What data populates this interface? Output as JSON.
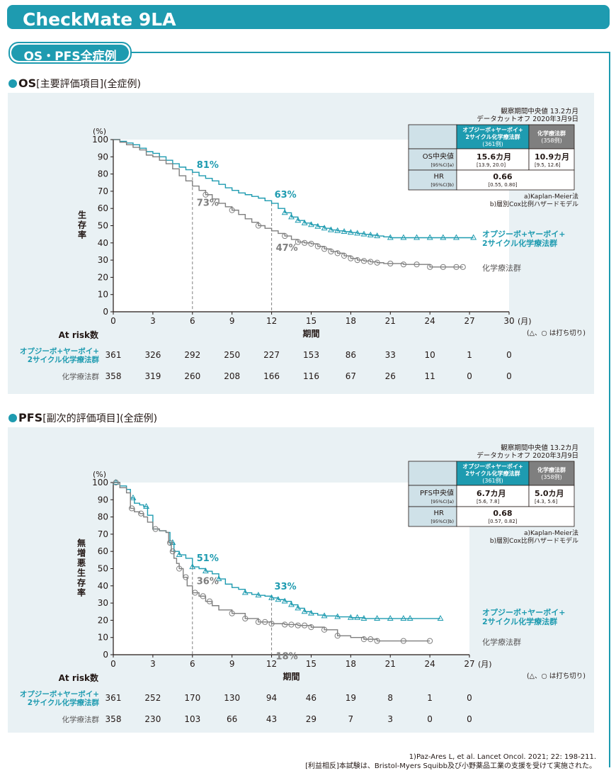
{
  "header": {
    "title": "CheckMate 9LA"
  },
  "section": {
    "label": "OS・PFS全症例"
  },
  "footer": {
    "reference": "1)Paz-Ares L, et al. Lancet Oncol. 2021; 22: 198-211.",
    "coi": "[利益相反]本試験は、Bristol-Myers Squibb及び小野薬品工業の支援を受けて実施された。"
  },
  "chart_data": [
    {
      "type": "line",
      "heading_main": "OS",
      "heading_sub": "[主要評価項目](全症例)",
      "ylabel": "生存率",
      "y_unit": "(%)",
      "xlabel": "期間",
      "x_unit": "(月)",
      "xlim": [
        0,
        30
      ],
      "ylim": [
        0,
        100
      ],
      "xticks": [
        0,
        3,
        6,
        9,
        12,
        15,
        18,
        21,
        24,
        27,
        30
      ],
      "yticks": [
        0,
        10,
        20,
        30,
        40,
        50,
        60,
        70,
        80,
        90,
        100
      ],
      "observation": "観察期間中央値 13.2カ月",
      "cutoff": "データカットオフ 2020年3月9日",
      "censor_note": "(△、○ は打ち切り)",
      "table": {
        "col_a_header": "オプジーボ+ヤーボイ+2サイクル化学療法群 (361例)",
        "col_b_header": "化学療法群 (358例)",
        "row1_label": "OS中央値",
        "row1_sub": "[95%CI]a)",
        "row1_a": "15.6カ月",
        "row1_a_ci": "[13.9, 20.0]",
        "row1_b": "10.9カ月",
        "row1_b_ci": "[9.5, 12.6]",
        "row2_label": "HR",
        "row2_sub": "[95%CI]b)",
        "row2_value": "0.66",
        "row2_ci": "[0.55, 0.80]",
        "note_a": "a)Kaplan-Meier法",
        "note_b": "b)層別Cox比例ハザードモデル"
      },
      "annotations": {
        "combo_6": "81%",
        "chemo_6": "73%",
        "combo_12": "63%",
        "chemo_12": "47%"
      },
      "series": [
        {
          "name": "オプジーボ+ヤーボイ+2サイクル化学療法群",
          "color": "#1e9bb0",
          "marker": "triangle",
          "x": [
            0,
            0.5,
            1,
            1.5,
            2,
            2.5,
            3,
            3.5,
            4,
            4.5,
            5,
            5.5,
            6,
            6.5,
            7,
            7.5,
            8,
            8.5,
            9,
            9.5,
            10,
            10.5,
            11,
            11.5,
            12,
            12.5,
            13,
            13.5,
            14,
            14.5,
            15,
            15.5,
            16,
            16.5,
            17,
            17.5,
            18,
            18.5,
            19,
            19.5,
            20,
            20.5,
            21,
            22,
            23,
            24,
            25,
            26,
            27.3
          ],
          "y": [
            100,
            99,
            98,
            97,
            95,
            93,
            92,
            90,
            88,
            86,
            84,
            82.5,
            81,
            79,
            77.5,
            76,
            74,
            72,
            70.5,
            69,
            68,
            67,
            66,
            64.5,
            63,
            60,
            57.5,
            55,
            53,
            51.5,
            50.5,
            49.5,
            48.5,
            47.5,
            47,
            46.5,
            46,
            45.5,
            45,
            44.5,
            44,
            43.5,
            43,
            43,
            43,
            43,
            43,
            43,
            43
          ],
          "censor_x": [
            13,
            13.5,
            14,
            14.5,
            15,
            15.5,
            16,
            16.5,
            17,
            17.5,
            18,
            18.5,
            19,
            19.5,
            20,
            21,
            22,
            23,
            24,
            25,
            26,
            27.3
          ]
        },
        {
          "name": "化学療法群",
          "color": "#7f7f7f",
          "marker": "circle",
          "x": [
            0,
            0.5,
            1,
            1.5,
            2,
            2.5,
            3,
            3.5,
            4,
            4.5,
            5,
            5.5,
            6,
            6.5,
            7,
            7.5,
            8,
            8.5,
            9,
            9.5,
            10,
            10.5,
            11,
            11.5,
            12,
            12.5,
            13,
            13.5,
            14,
            14.5,
            15,
            15.5,
            16,
            16.5,
            17,
            17.5,
            18,
            18.5,
            19,
            19.5,
            20,
            20.5,
            21,
            22,
            23,
            24,
            25,
            26,
            26.5
          ],
          "y": [
            100,
            98.5,
            97,
            95.5,
            94,
            91,
            90,
            88,
            86,
            83,
            79,
            76,
            73,
            70.5,
            68,
            65.5,
            63,
            61,
            59,
            56.5,
            54,
            52,
            50,
            48.5,
            47,
            45.5,
            44,
            42,
            40.5,
            40,
            39.5,
            38,
            36.5,
            35,
            34,
            32.5,
            31,
            30,
            29.5,
            29,
            28.5,
            28,
            28,
            27.5,
            27.5,
            26,
            26,
            26,
            26
          ],
          "censor_x": [
            7,
            9,
            11,
            13,
            14,
            14.5,
            15,
            15.5,
            16,
            16.5,
            17,
            17.5,
            18,
            18.5,
            19,
            19.5,
            20,
            21,
            22,
            23,
            24,
            25,
            26,
            26.5
          ]
        }
      ],
      "legend": {
        "combo_line1": "オプジーボ+ヤーボイ+",
        "combo_line2": "2サイクル化学療法群",
        "chemo": "化学療法群"
      },
      "risk_table": {
        "title": "At risk数",
        "combo_label_1": "オプジーボ+ヤーボイ+",
        "combo_label_2": "2サイクル化学療法群",
        "chemo_label": "化学療法群",
        "combo": [
          "361",
          "326",
          "292",
          "250",
          "227",
          "153",
          "86",
          "33",
          "10",
          "1",
          "0"
        ],
        "chemo": [
          "358",
          "319",
          "260",
          "208",
          "166",
          "116",
          "67",
          "26",
          "11",
          "0",
          "0"
        ]
      }
    },
    {
      "type": "line",
      "heading_main": "PFS",
      "heading_sub": "[副次的評価項目](全症例)",
      "ylabel": "無増悪生存率",
      "y_unit": "(%)",
      "xlabel": "期間",
      "x_unit": "(月)",
      "xlim": [
        0,
        27
      ],
      "ylim": [
        0,
        100
      ],
      "xticks": [
        0,
        3,
        6,
        9,
        12,
        15,
        18,
        21,
        24,
        27
      ],
      "yticks": [
        0,
        10,
        20,
        30,
        40,
        50,
        60,
        70,
        80,
        90,
        100
      ],
      "observation": "観察期間中央値 13.2カ月",
      "cutoff": "データカットオフ 2020年3月9日",
      "censor_note": "(△、○ は打ち切り)",
      "table": {
        "col_a_header": "オプジーボ+ヤーボイ+2サイクル化学療法群 (361例)",
        "col_b_header": "化学療法群 (358例)",
        "row1_label": "PFS中央値",
        "row1_sub": "[95%CI]a)",
        "row1_a": "6.7カ月",
        "row1_a_ci": "[5.6, 7.8]",
        "row1_b": "5.0カ月",
        "row1_b_ci": "[4.3, 5.6]",
        "row2_label": "HR",
        "row2_sub": "[95%CI]b)",
        "row2_value": "0.68",
        "row2_ci": "[0.57, 0.82]",
        "note_a": "a)Kaplan-Meier法",
        "note_b": "b)層別Cox比例ハザードモデル"
      },
      "annotations": {
        "combo_6": "51%",
        "chemo_6": "36%",
        "combo_12": "33%",
        "chemo_12": "18%"
      },
      "series": [
        {
          "name": "オプジーボ+ヤーボイ+2サイクル化学療法群",
          "color": "#1e9bb0",
          "marker": "triangle",
          "x": [
            0,
            0.5,
            1,
            1.3,
            1.6,
            2,
            2.3,
            2.6,
            3,
            3.5,
            4,
            4.3,
            4.6,
            5,
            5.5,
            6,
            6.5,
            7,
            7.5,
            8,
            8.5,
            9,
            9.5,
            10,
            10.5,
            11,
            11.5,
            12,
            12.5,
            13,
            13.5,
            14,
            14.5,
            15,
            15.5,
            16,
            17,
            18,
            19,
            20,
            21,
            22,
            23,
            24,
            24.8
          ],
          "y": [
            100,
            98,
            96,
            91,
            88,
            87,
            86,
            81,
            73,
            72,
            71,
            65,
            60,
            58,
            56,
            51,
            50,
            48.5,
            47,
            44,
            41,
            39,
            38,
            36,
            35,
            34.5,
            34,
            33,
            32,
            31,
            29,
            27,
            25,
            24,
            23,
            22.5,
            22,
            21.5,
            21,
            21,
            21,
            21,
            21,
            21,
            21
          ],
          "censor_x": [
            0.2,
            1.5,
            2.5,
            4.5,
            5,
            6,
            7,
            8,
            10,
            11,
            12,
            12.5,
            13,
            13.5,
            14,
            14.5,
            15,
            16,
            17,
            18,
            18.5,
            19,
            20,
            21,
            22,
            22.5,
            24.8
          ]
        },
        {
          "name": "化学療法群",
          "color": "#7f7f7f",
          "marker": "circle",
          "x": [
            0,
            0.5,
            1,
            1.3,
            1.6,
            2,
            2.3,
            2.6,
            3,
            3.5,
            4,
            4.2,
            4.4,
            4.6,
            4.8,
            5,
            5.3,
            5.6,
            6,
            6.5,
            7,
            7.5,
            8,
            9,
            10,
            11,
            12,
            13,
            14,
            15,
            16,
            17,
            18,
            19,
            20,
            21,
            22,
            23,
            24
          ],
          "y": [
            100,
            97,
            94,
            85,
            83,
            82,
            80,
            77,
            73,
            72,
            71,
            65,
            60,
            56,
            53,
            50,
            45,
            40,
            36,
            34,
            31,
            28.5,
            26,
            24,
            21,
            19,
            18,
            17.5,
            17,
            16,
            14.5,
            11,
            10,
            9,
            8,
            8,
            8,
            8,
            8
          ],
          "censor_x": [
            0.2,
            1.4,
            2.1,
            3.2,
            4.3,
            4.5,
            5,
            5.5,
            6.2,
            6.8,
            7.3,
            9,
            10,
            11,
            11.5,
            12,
            13,
            13.5,
            14,
            14.5,
            15,
            16,
            17,
            19,
            19.5,
            20,
            22,
            24
          ]
        }
      ],
      "legend": {
        "combo_line1": "オプジーボ+ヤーボイ+",
        "combo_line2": "2サイクル化学療法群",
        "chemo": "化学療法群"
      },
      "risk_table": {
        "title": "At risk数",
        "combo_label_1": "オプジーボ+ヤーボイ+",
        "combo_label_2": "2サイクル化学療法群",
        "chemo_label": "化学療法群",
        "combo": [
          "361",
          "252",
          "170",
          "130",
          "94",
          "46",
          "19",
          "8",
          "1",
          "0"
        ],
        "chemo": [
          "358",
          "230",
          "103",
          "66",
          "43",
          "29",
          "7",
          "3",
          "0",
          "0"
        ]
      }
    }
  ]
}
